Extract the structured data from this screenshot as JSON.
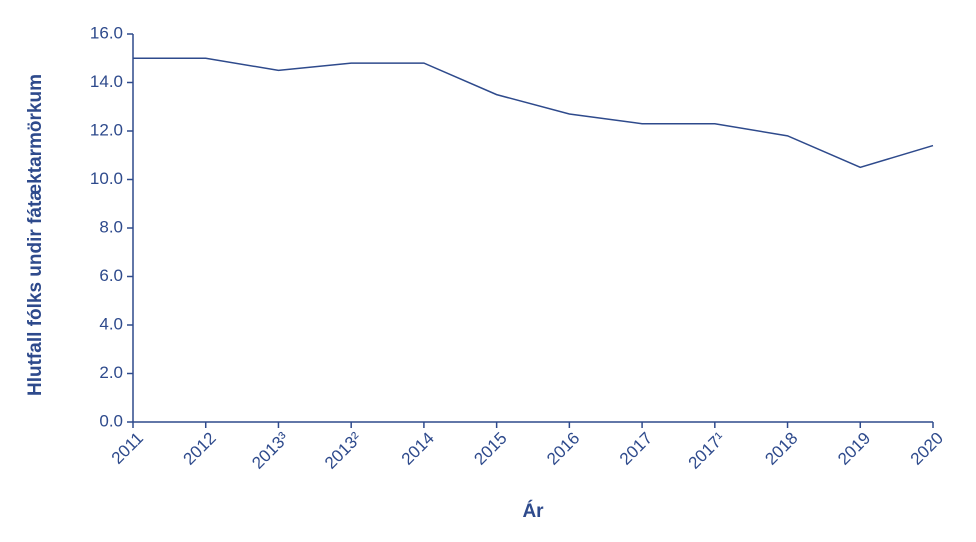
{
  "chart_data": {
    "type": "line",
    "x_label": "Ár",
    "y_label": "Hlutfall fólks undir fátæktarmörkum",
    "categories": [
      "2011",
      "2012",
      "2013³",
      "2013²",
      "2014",
      "2015",
      "2016",
      "2017",
      "2017¹",
      "2018",
      "2019",
      "2020"
    ],
    "values": [
      15.0,
      15.0,
      14.5,
      14.8,
      14.8,
      13.5,
      12.7,
      12.3,
      12.3,
      11.8,
      10.5,
      11.4
    ],
    "color": "#2e4a8c",
    "ylim": [
      0,
      16
    ],
    "yticks": [
      {
        "value": 0,
        "label": "0.0"
      },
      {
        "value": 2,
        "label": "2.0"
      },
      {
        "value": 4,
        "label": "4.0"
      },
      {
        "value": 6,
        "label": "6.0"
      },
      {
        "value": 8,
        "label": "8.0"
      },
      {
        "value": 10,
        "label": "10.0"
      },
      {
        "value": 12,
        "label": "12.0"
      },
      {
        "value": 14,
        "label": "14.0"
      },
      {
        "value": 16,
        "label": "16.0"
      }
    ]
  }
}
